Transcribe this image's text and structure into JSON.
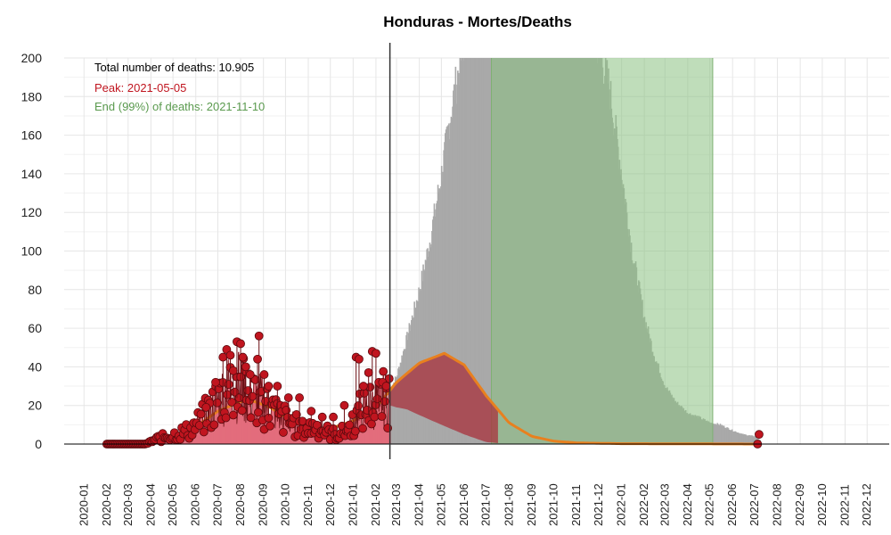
{
  "chart_data": {
    "type": "bar",
    "title": "Honduras - Mortes/Deaths",
    "xlabel": "",
    "ylabel": "",
    "ylim": [
      0,
      200
    ],
    "yticks": [
      0,
      20,
      40,
      60,
      80,
      100,
      120,
      140,
      160,
      180,
      200
    ],
    "xlim": [
      "2019-12-05",
      "2022-12-31"
    ],
    "xticks": [
      "2020-01",
      "2020-02",
      "2020-03",
      "2020-04",
      "2020-05",
      "2020-06",
      "2020-07",
      "2020-08",
      "2020-09",
      "2020-10",
      "2020-11",
      "2020-12",
      "2021-01",
      "2021-02",
      "2021-03",
      "2021-04",
      "2021-05",
      "2021-06",
      "2021-07",
      "2021-08",
      "2021-09",
      "2021-10",
      "2021-11",
      "2021-12",
      "2022-01",
      "2022-02",
      "2022-03",
      "2022-04",
      "2022-05",
      "2022-06",
      "2022-07",
      "2022-08",
      "2022-09",
      "2022-10",
      "2022-11",
      "2022-12"
    ],
    "grid": true,
    "annotations": {
      "total": "Total number of deaths: 10.905",
      "peak": "Peak: 2021-05-05",
      "end": "End (99%) of deaths: 2021-11-10"
    },
    "vline_date": "2021-02-20",
    "green_band": [
      "2021-07-08",
      "2022-05-05"
    ],
    "observed_daily": {
      "start": "2020-02-01",
      "end": "2021-02-20",
      "keypoints": [
        [
          "2020-02-01",
          0
        ],
        [
          "2020-03-25",
          0
        ],
        [
          "2020-04-10",
          3
        ],
        [
          "2020-05-01",
          5
        ],
        [
          "2020-05-25",
          8
        ],
        [
          "2020-06-10",
          14
        ],
        [
          "2020-06-25",
          22
        ],
        [
          "2020-07-10",
          30
        ],
        [
          "2020-07-25",
          35
        ],
        [
          "2020-08-10",
          28
        ],
        [
          "2020-08-25",
          26
        ],
        [
          "2020-09-10",
          20
        ],
        [
          "2020-09-25",
          15
        ],
        [
          "2020-10-10",
          12
        ],
        [
          "2020-10-25",
          8
        ],
        [
          "2020-11-10",
          10
        ],
        [
          "2020-11-25",
          7
        ],
        [
          "2020-12-10",
          5
        ],
        [
          "2020-12-25",
          8
        ],
        [
          "2021-01-10",
          18
        ],
        [
          "2021-01-25",
          22
        ],
        [
          "2021-02-10",
          25
        ],
        [
          "2021-02-20",
          28
        ]
      ],
      "spikes": [
        [
          "2020-07-08",
          45
        ],
        [
          "2020-07-13",
          49
        ],
        [
          "2020-07-18",
          46
        ],
        [
          "2020-07-22",
          38
        ],
        [
          "2020-07-27",
          53
        ],
        [
          "2020-08-01",
          52
        ],
        [
          "2020-08-04",
          45
        ],
        [
          "2020-08-08",
          40
        ],
        [
          "2020-08-14",
          36
        ],
        [
          "2020-08-26",
          56
        ],
        [
          "2020-08-24",
          44
        ],
        [
          "2020-09-02",
          36
        ],
        [
          "2020-09-08",
          30
        ],
        [
          "2020-09-20",
          30
        ],
        [
          "2020-10-05",
          24
        ],
        [
          "2020-10-20",
          24
        ],
        [
          "2020-11-05",
          17
        ],
        [
          "2020-11-20",
          14
        ],
        [
          "2020-12-05",
          14
        ],
        [
          "2020-12-20",
          20
        ],
        [
          "2021-01-05",
          45
        ],
        [
          "2021-01-09",
          44
        ],
        [
          "2021-01-15",
          30
        ],
        [
          "2021-01-22",
          37
        ],
        [
          "2021-01-27",
          48
        ],
        [
          "2021-02-01",
          47
        ],
        [
          "2021-02-05",
          32
        ],
        [
          "2021-02-10",
          32
        ],
        [
          "2021-02-15",
          30
        ],
        [
          "2020-06-15",
          19
        ],
        [
          "2020-06-28",
          32
        ]
      ]
    },
    "projected_daily": {
      "start": "2021-02-20",
      "end": "2022-07-08",
      "keypoints": [
        [
          "2021-02-20",
          28
        ],
        [
          "2021-03-01",
          35
        ],
        [
          "2021-03-15",
          55
        ],
        [
          "2021-04-01",
          80
        ],
        [
          "2021-04-15",
          105
        ],
        [
          "2021-05-01",
          140
        ],
        [
          "2021-05-15",
          175
        ],
        [
          "2021-06-01",
          210
        ],
        [
          "2021-06-15",
          240
        ],
        [
          "2021-07-01",
          260
        ],
        [
          "2021-07-15",
          265
        ],
        [
          "2021-08-01",
          262
        ],
        [
          "2021-09-01",
          255
        ],
        [
          "2021-10-01",
          245
        ],
        [
          "2021-11-01",
          230
        ],
        [
          "2021-12-01",
          205
        ],
        [
          "2021-12-15",
          185
        ],
        [
          "2022-01-01",
          140
        ],
        [
          "2022-01-15",
          100
        ],
        [
          "2022-02-01",
          65
        ],
        [
          "2022-02-15",
          45
        ],
        [
          "2022-03-01",
          30
        ],
        [
          "2022-03-15",
          22
        ],
        [
          "2022-04-01",
          16
        ],
        [
          "2022-04-15",
          14
        ],
        [
          "2022-05-01",
          11
        ],
        [
          "2022-05-15",
          10
        ],
        [
          "2022-06-01",
          7
        ],
        [
          "2022-06-15",
          5
        ],
        [
          "2022-07-01",
          4
        ],
        [
          "2022-07-08",
          2
        ]
      ]
    },
    "model_curve": {
      "keypoints": [
        [
          "2020-02-01",
          0
        ],
        [
          "2020-04-01",
          0.5
        ],
        [
          "2020-05-01",
          3
        ],
        [
          "2020-06-01",
          9
        ],
        [
          "2020-07-01",
          17
        ],
        [
          "2020-08-01",
          22
        ],
        [
          "2020-08-20",
          22
        ],
        [
          "2020-09-10",
          19
        ],
        [
          "2020-10-01",
          14
        ],
        [
          "2020-11-01",
          9
        ],
        [
          "2020-12-01",
          8
        ],
        [
          "2021-01-01",
          12
        ],
        [
          "2021-02-01",
          19
        ],
        [
          "2021-03-01",
          32
        ],
        [
          "2021-04-01",
          42
        ],
        [
          "2021-05-05",
          47
        ],
        [
          "2021-06-01",
          41
        ],
        [
          "2021-07-01",
          25
        ],
        [
          "2021-08-01",
          11
        ],
        [
          "2021-09-01",
          4
        ],
        [
          "2021-10-01",
          1.5
        ],
        [
          "2021-11-01",
          0.6
        ],
        [
          "2022-01-01",
          0.2
        ],
        [
          "2022-07-08",
          0
        ]
      ]
    },
    "model_area": {
      "keypoints": [
        [
          "2021-02-20",
          20
        ],
        [
          "2021-03-01",
          19
        ],
        [
          "2021-03-15",
          18
        ],
        [
          "2021-04-01",
          15
        ],
        [
          "2021-05-01",
          10
        ],
        [
          "2021-06-01",
          5
        ],
        [
          "2021-07-01",
          1
        ],
        [
          "2021-08-01",
          0
        ]
      ]
    },
    "end_points": [
      [
        "2022-07-05",
        0
      ],
      [
        "2022-07-07",
        5
      ]
    ],
    "colors": {
      "observed_fill": "#e36d7c",
      "observed_point": "#c0151f",
      "projected": "#a9a9a9",
      "green_band": "#8bc181",
      "model_area": "#a8323c",
      "model_curve": "#e8801f",
      "annotation_total": "#000000",
      "annotation_peak": "#c0151f",
      "annotation_end": "#5a9a4e"
    }
  }
}
